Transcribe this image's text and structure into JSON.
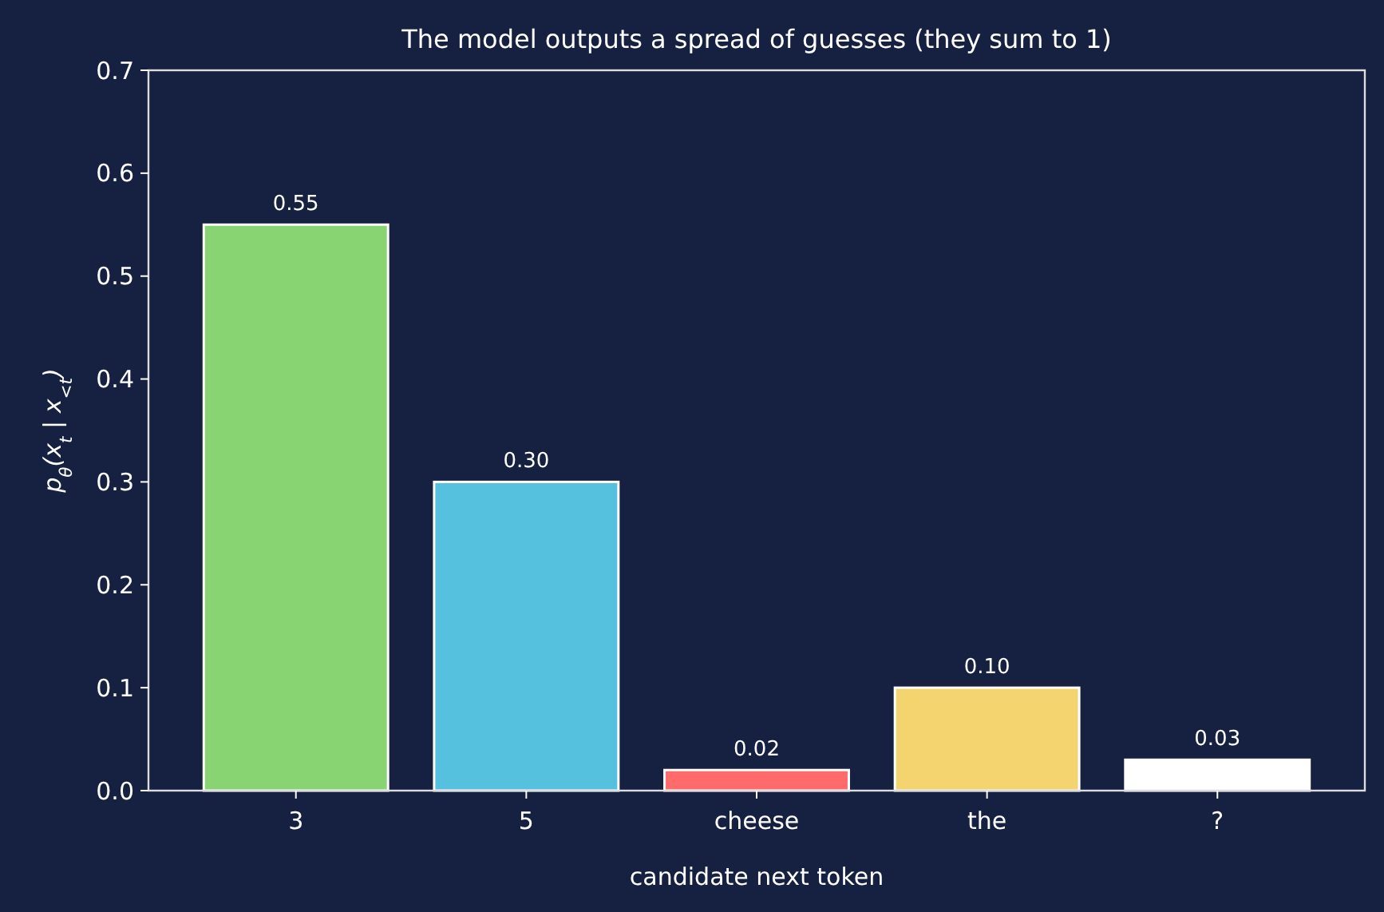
{
  "chart_data": {
    "type": "bar",
    "title": "The model outputs a spread of guesses (they sum to 1)",
    "xlabel": "candidate next token",
    "ylabel": "p$_{θ}$(x$_{t}$ | x$_{<t}$)",
    "categories": [
      "3",
      "5",
      "cheese",
      "the",
      "?"
    ],
    "values": [
      0.55,
      0.3,
      0.02,
      0.1,
      0.03
    ],
    "colors": [
      "#88d472",
      "#56c1de",
      "#ff6b6b",
      "#f3d46e",
      "#ffffff"
    ],
    "value_labels": [
      "0.55",
      "0.30",
      "0.02",
      "0.10",
      "0.03"
    ],
    "ylim": [
      0,
      0.7
    ],
    "yticks": [
      {
        "value": 0,
        "label": "0.0"
      },
      0.1,
      0.2,
      0.3,
      0.4,
      0.5,
      0.6,
      0.7
    ],
    "grid": false
  }
}
